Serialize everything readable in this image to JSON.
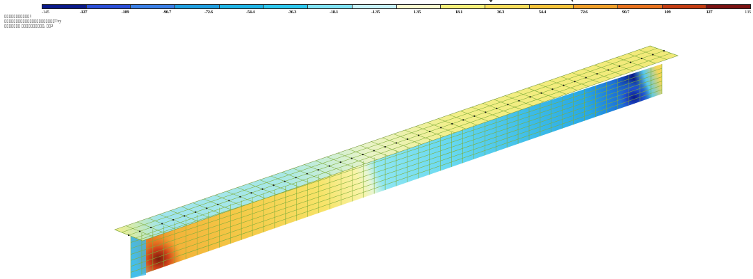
{
  "legend": {
    "colors": [
      "#0a1a8a",
      "#2b4fd8",
      "#3a7fe6",
      "#1f9fe0",
      "#1fb5e6",
      "#2ec8ee",
      "#7fe3f5",
      "#c8f4fb",
      "#fbfdd0",
      "#f7f07a",
      "#f7dd5a",
      "#f5c33a",
      "#f0a02a",
      "#e8721e",
      "#c33c12",
      "#7a1212"
    ],
    "tick_labels": [
      "-145",
      "-127",
      "-109",
      "-90.7",
      "-72.6",
      "-54.4",
      "-36.3",
      "-18.1",
      "-1.35",
      "1.35",
      "18.1",
      "36.3",
      "54.4",
      "72.6",
      "90.7",
      "109",
      "127",
      "135"
    ]
  },
  "info": {
    "line1": "▯▯▯▯▯▯▯▯▯▯▯1",
    "line2": "▯▯▯▯▯▯▯▯▯▯▯▯▯▯▯▯▯▯▯▯▯▯Txy",
    "line3": "▯▯▯▯▯▯▯ ▯▯▯▯▯▯▯▯▯▯, ▯▯2"
  }
}
